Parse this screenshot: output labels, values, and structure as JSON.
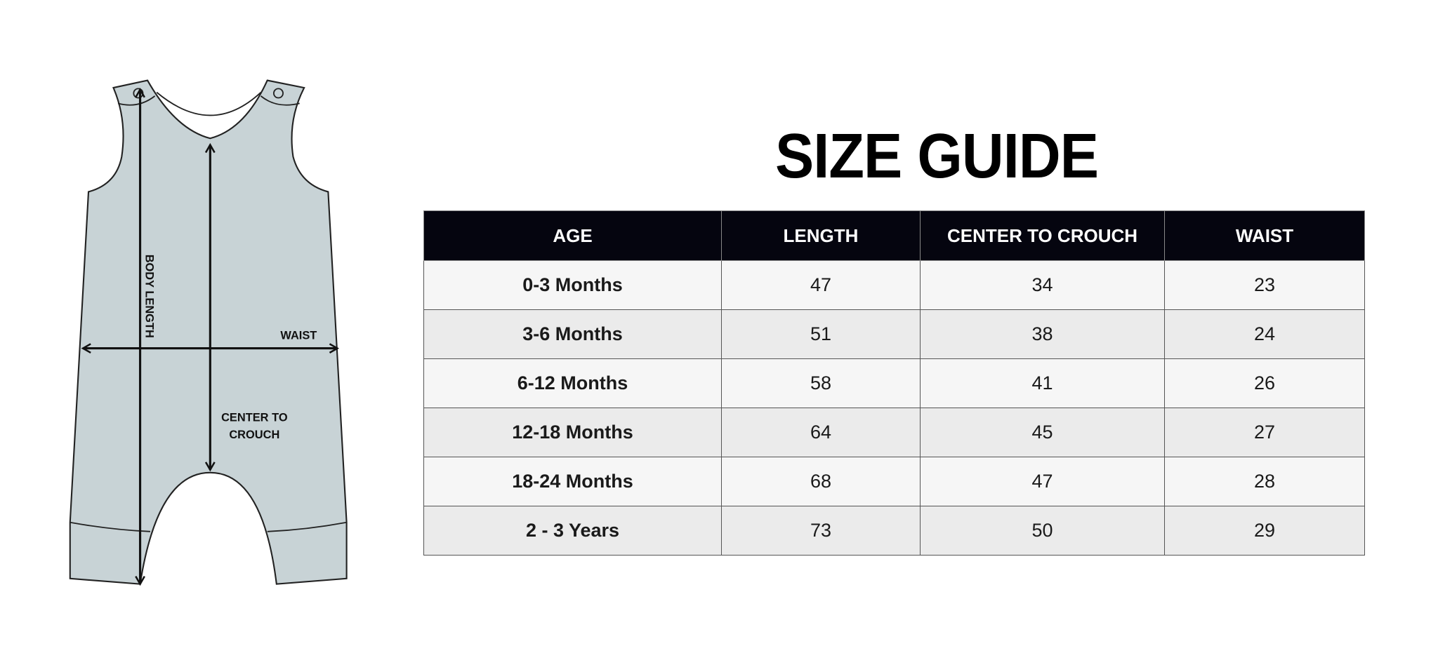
{
  "title": "SIZE GUIDE",
  "diagram": {
    "labels": {
      "body_length": "BODY LENGTH",
      "waist": "WAIST",
      "center_line1": "CENTER TO",
      "center_line2": "CROUCH"
    },
    "fill_color": "#c8d3d6"
  },
  "table": {
    "headers": [
      "AGE",
      "LENGTH",
      "CENTER TO CROUCH",
      "WAIST"
    ],
    "rows": [
      [
        "0-3 Months",
        "47",
        "34",
        "23"
      ],
      [
        "3-6 Months",
        "51",
        "38",
        "24"
      ],
      [
        "6-12 Months",
        "58",
        "41",
        "26"
      ],
      [
        "12-18 Months",
        "64",
        "45",
        "27"
      ],
      [
        "18-24 Months",
        "68",
        "47",
        "28"
      ],
      [
        "2 - 3 Years",
        "73",
        "50",
        "29"
      ]
    ],
    "header_color": "#05050f"
  }
}
